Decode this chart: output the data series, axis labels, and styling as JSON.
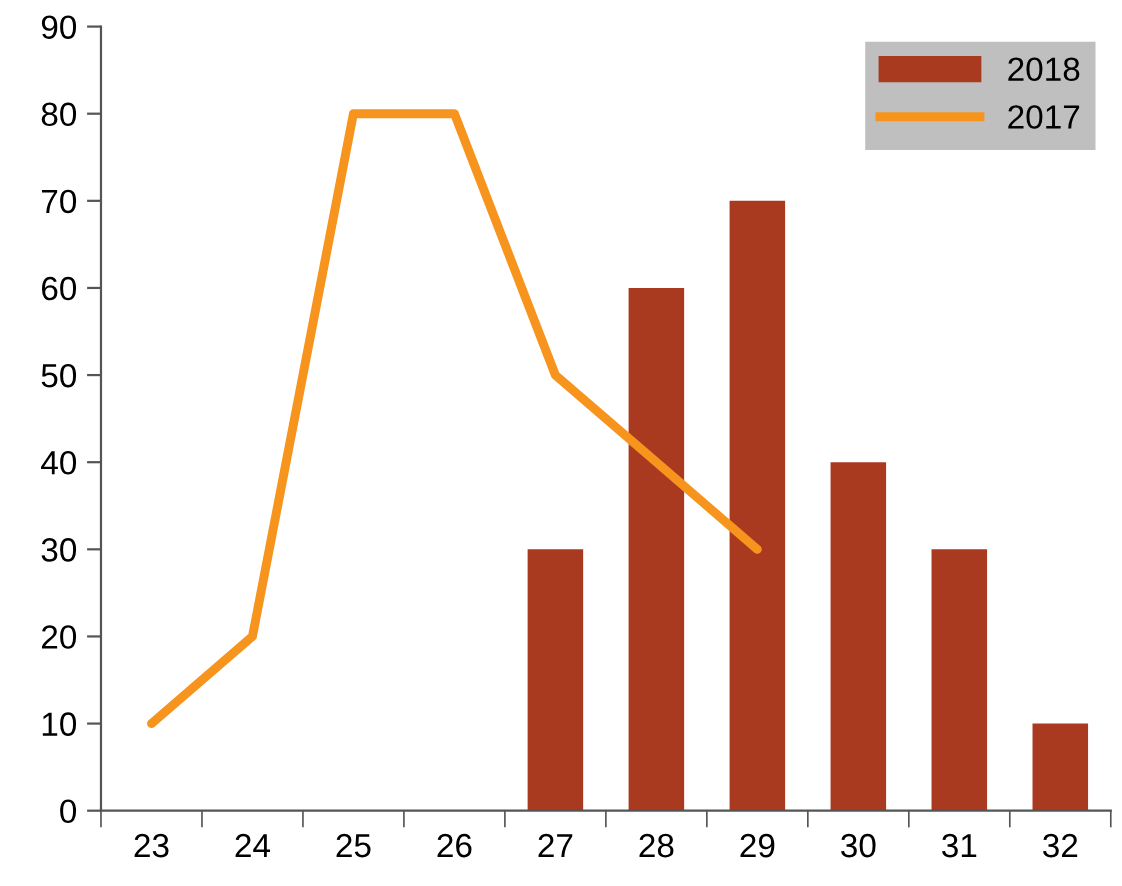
{
  "chart_data": {
    "type": "bar",
    "categories": [
      "23",
      "24",
      "25",
      "26",
      "27",
      "28",
      "29",
      "30",
      "31",
      "32"
    ],
    "series": [
      {
        "name": "2018",
        "color": "#a93a1f",
        "values": [
          null,
          null,
          null,
          null,
          30,
          60,
          70,
          40,
          30,
          10
        ]
      },
      {
        "name": "2017",
        "type": "line",
        "color": "#f7941d",
        "values": [
          10,
          20,
          80,
          80,
          50,
          40,
          30,
          null,
          null,
          null
        ]
      }
    ],
    "ylim": [
      0,
      90
    ],
    "yticks": [
      0,
      10,
      20,
      30,
      40,
      50,
      60,
      70,
      80,
      90
    ],
    "grid": false,
    "legend": "top right",
    "marker": "none",
    "line_style": "solid"
  }
}
